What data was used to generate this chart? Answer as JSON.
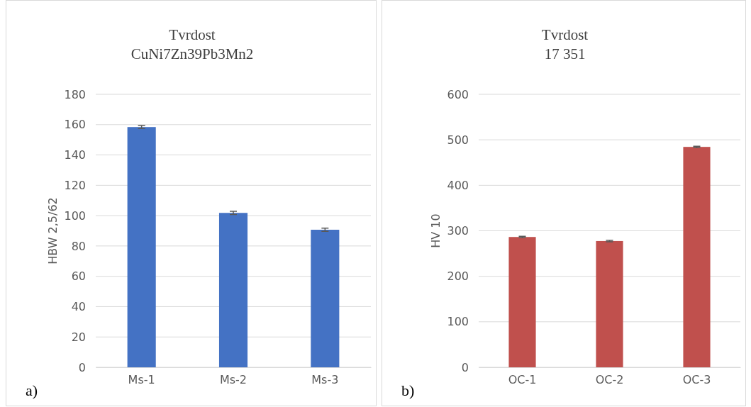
{
  "chart_data": [
    {
      "type": "bar",
      "title": "Tvrdost\nCuNi7Zn39Pb3Mn2",
      "ylabel": "HBW 2,5/62",
      "categories": [
        "Ms-1",
        "Ms-2",
        "Ms-3"
      ],
      "series": [
        {
          "color": "#4472c4",
          "values": [
            158.4,
            101.8,
            90.7
          ],
          "errors": [
            1,
            1,
            1
          ]
        }
      ],
      "ylim": [
        0,
        180
      ],
      "yticks": [
        0,
        20,
        40,
        60,
        80,
        100,
        120,
        140,
        160,
        180
      ],
      "grid": "y",
      "annotations": [
        "a)"
      ]
    },
    {
      "type": "bar",
      "title": "Tvrdost\n17 351",
      "ylabel": "HV 10",
      "categories": [
        "OC-1",
        "OC-2",
        "OC-3"
      ],
      "series": [
        {
          "color": "#c0504d",
          "values": [
            286.4,
            277.5,
            484.4
          ],
          "errors": [
            1.5,
            1.5,
            1.5
          ]
        }
      ],
      "ylim": [
        0,
        600
      ],
      "yticks": [
        0,
        100,
        200,
        300,
        400,
        500,
        600
      ],
      "grid": "y",
      "annotations": [
        "b)"
      ]
    }
  ]
}
